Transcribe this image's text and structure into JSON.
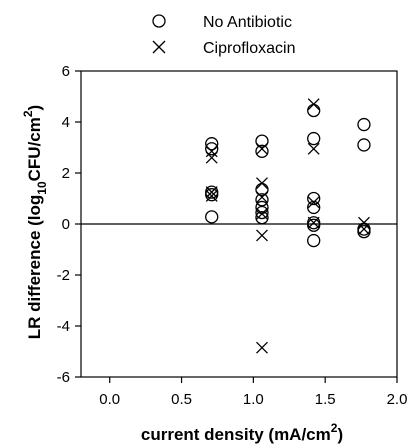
{
  "chart_data": {
    "type": "scatter",
    "title": "",
    "xlabel": {
      "main": "current density (mA/cm",
      "sup": "2",
      "close": ")"
    },
    "ylabel": {
      "main": "LR difference (log",
      "sub": "10",
      "mid": "CFU/cm",
      "sup": "2",
      "close": ")"
    },
    "xlim": [
      -0.2,
      2.0
    ],
    "ylim": [
      -6,
      6
    ],
    "xticks": [
      0.0,
      0.5,
      1.0,
      1.5,
      2.0
    ],
    "xtick_labels": [
      "0.0",
      "0.5",
      "1.0",
      "1.5",
      "2.0"
    ],
    "yticks": [
      -6,
      -4,
      -2,
      0,
      2,
      4,
      6
    ],
    "ytick_labels": [
      "-6",
      "-4",
      "-2",
      "0",
      "2",
      "4",
      "6"
    ],
    "reference_line_y": 0,
    "legend_position": "top-center, above plot",
    "grid": false,
    "series": [
      {
        "name": "No Antibiotic",
        "marker": "circle",
        "points": [
          {
            "x": 0.71,
            "y": 3.15
          },
          {
            "x": 0.71,
            "y": 2.95
          },
          {
            "x": 0.71,
            "y": 1.25
          },
          {
            "x": 0.71,
            "y": 1.15
          },
          {
            "x": 0.71,
            "y": 0.28
          },
          {
            "x": 1.06,
            "y": 3.25
          },
          {
            "x": 1.06,
            "y": 2.85
          },
          {
            "x": 1.06,
            "y": 1.35
          },
          {
            "x": 1.06,
            "y": 0.95
          },
          {
            "x": 1.06,
            "y": 0.65
          },
          {
            "x": 1.06,
            "y": 0.45
          },
          {
            "x": 1.06,
            "y": 0.25
          },
          {
            "x": 1.42,
            "y": 4.45
          },
          {
            "x": 1.42,
            "y": 3.35
          },
          {
            "x": 1.42,
            "y": 1.0
          },
          {
            "x": 1.42,
            "y": 0.65
          },
          {
            "x": 1.42,
            "y": 0.05
          },
          {
            "x": 1.42,
            "y": -0.05
          },
          {
            "x": 1.42,
            "y": -0.65
          },
          {
            "x": 1.77,
            "y": 3.9
          },
          {
            "x": 1.77,
            "y": 3.1
          },
          {
            "x": 1.77,
            "y": -0.2
          },
          {
            "x": 1.77,
            "y": -0.3
          }
        ]
      },
      {
        "name": "Ciprofloxacin",
        "marker": "x",
        "points": [
          {
            "x": 0.71,
            "y": 2.85
          },
          {
            "x": 0.71,
            "y": 2.6
          },
          {
            "x": 0.71,
            "y": 1.25
          },
          {
            "x": 0.71,
            "y": 1.1
          },
          {
            "x": 1.06,
            "y": 2.95
          },
          {
            "x": 1.06,
            "y": 1.6
          },
          {
            "x": 1.06,
            "y": 1.05
          },
          {
            "x": 1.06,
            "y": 0.4
          },
          {
            "x": 1.06,
            "y": -0.45
          },
          {
            "x": 1.06,
            "y": -4.85
          },
          {
            "x": 1.42,
            "y": 4.7
          },
          {
            "x": 1.42,
            "y": 2.95
          },
          {
            "x": 1.42,
            "y": 0.85
          },
          {
            "x": 1.42,
            "y": 0.05
          },
          {
            "x": 1.77,
            "y": 0.05
          },
          {
            "x": 1.77,
            "y": -0.2
          }
        ]
      }
    ]
  }
}
